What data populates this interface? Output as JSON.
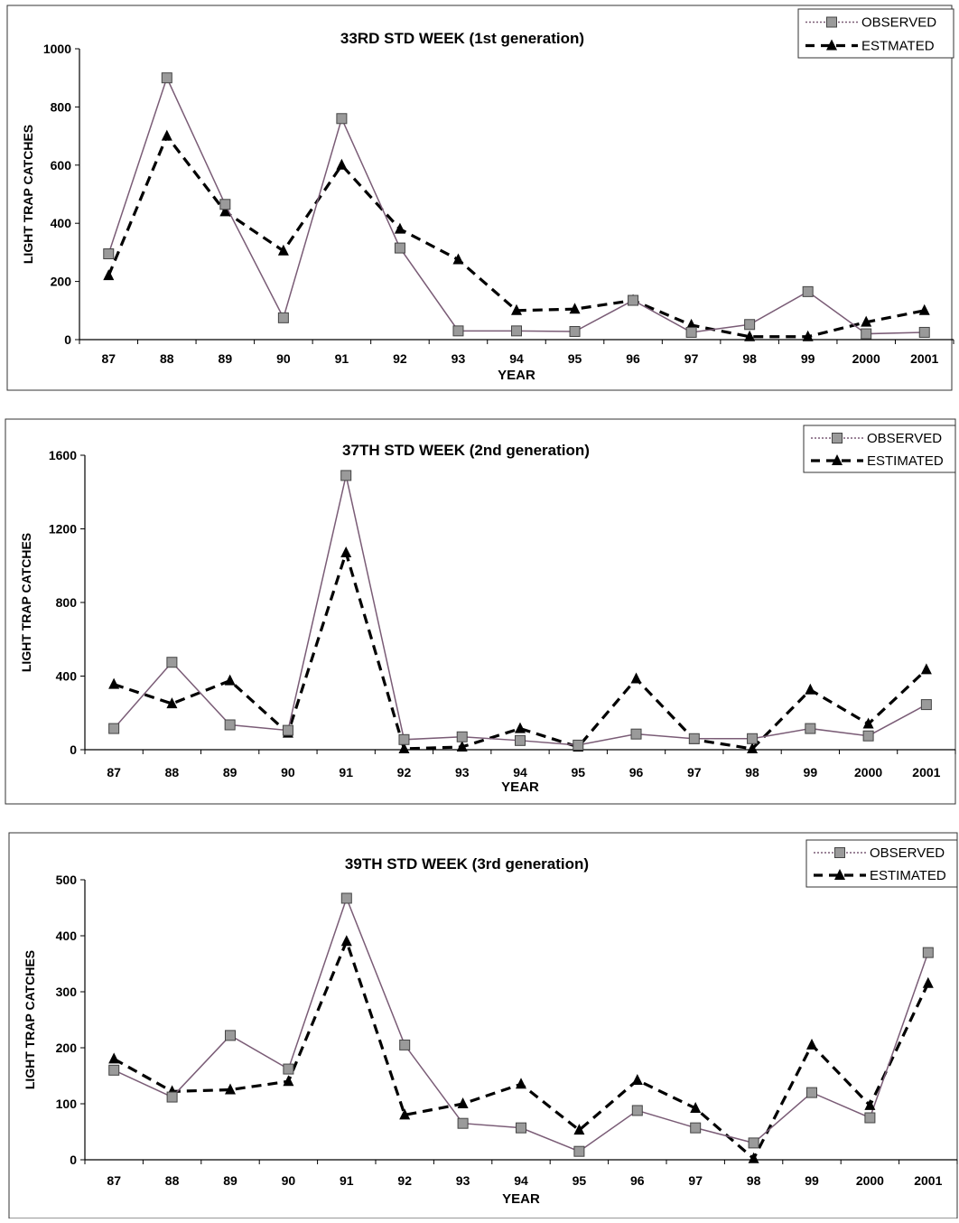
{
  "chart_data": [
    {
      "type": "line",
      "title": "33RD STD WEEK (1st generation)",
      "xlabel": "YEAR",
      "ylabel": "LIGHT TRAP CATCHES",
      "categories": [
        "87",
        "88",
        "89",
        "90",
        "91",
        "92",
        "93",
        "94",
        "95",
        "96",
        "97",
        "98",
        "99",
        "2000",
        "2001"
      ],
      "ylim": [
        0,
        1000
      ],
      "yticks": [
        0,
        200,
        400,
        600,
        800,
        1000
      ],
      "legend_position": "top-right",
      "series": [
        {
          "name": "OBSERVED",
          "values": [
            295,
            900,
            465,
            75,
            760,
            315,
            30,
            30,
            28,
            135,
            25,
            52,
            165,
            20,
            25
          ]
        },
        {
          "name": "ESTMATED",
          "values": [
            220,
            700,
            440,
            305,
            600,
            380,
            275,
            100,
            105,
            135,
            50,
            10,
            10,
            60,
            100
          ]
        }
      ]
    },
    {
      "type": "line",
      "title": "37TH STD WEEK (2nd generation)",
      "xlabel": "YEAR",
      "ylabel": "LIGHT TRAP CATCHES",
      "categories": [
        "87",
        "88",
        "89",
        "90",
        "91",
        "92",
        "93",
        "94",
        "95",
        "96",
        "97",
        "98",
        "99",
        "2000",
        "2001"
      ],
      "ylim": [
        0,
        1600
      ],
      "yticks": [
        0,
        400,
        800,
        1200,
        1600
      ],
      "legend_position": "top-right",
      "series": [
        {
          "name": "OBSERVED",
          "values": [
            115,
            475,
            135,
            105,
            1490,
            55,
            70,
            50,
            25,
            85,
            60,
            60,
            115,
            75,
            245
          ]
        },
        {
          "name": "ESTIMATED",
          "values": [
            355,
            250,
            375,
            90,
            1070,
            5,
            15,
            115,
            15,
            385,
            55,
            5,
            325,
            140,
            435
          ]
        }
      ]
    },
    {
      "type": "line",
      "title": "39TH STD WEEK (3rd generation)",
      "xlabel": "YEAR",
      "ylabel": "LIGHT TRAP CATCHES",
      "categories": [
        "87",
        "88",
        "89",
        "90",
        "91",
        "92",
        "93",
        "94",
        "95",
        "96",
        "97",
        "98",
        "99",
        "2000",
        "2001"
      ],
      "ylim": [
        0,
        500
      ],
      "yticks": [
        0,
        100,
        200,
        300,
        400,
        500
      ],
      "legend_position": "top-right",
      "series": [
        {
          "name": "OBSERVED",
          "values": [
            160,
            112,
            222,
            162,
            467,
            205,
            65,
            57,
            15,
            88,
            57,
            30,
            120,
            75,
            370
          ]
        },
        {
          "name": "ESTIMATED",
          "values": [
            180,
            122,
            125,
            140,
            390,
            80,
            100,
            135,
            53,
            142,
            92,
            2,
            205,
            97,
            315
          ]
        }
      ]
    }
  ],
  "colors": {
    "observed_line": "#7a5c76",
    "estimated_line": "#000000",
    "axis": "#000000",
    "frame": "#333333"
  }
}
